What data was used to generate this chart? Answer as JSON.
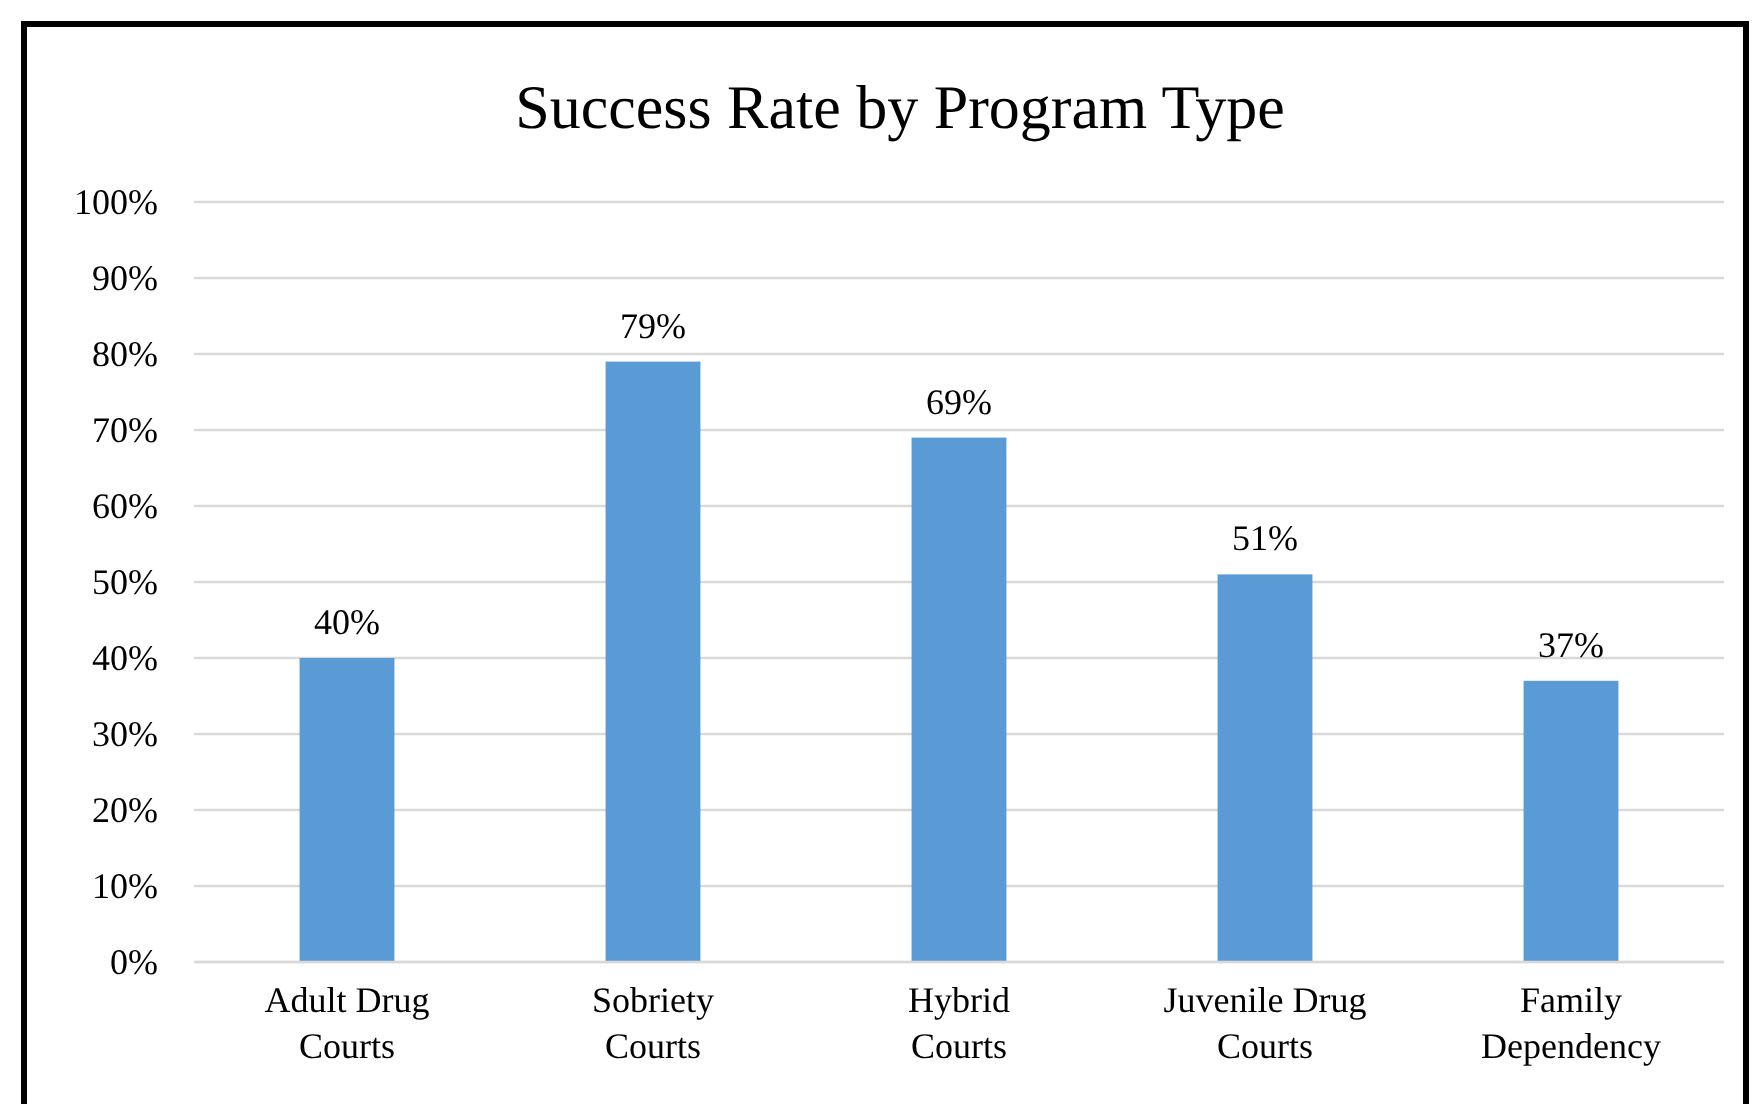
{
  "chart_data": {
    "type": "bar",
    "title": "Success Rate by Program Type",
    "categories": [
      "Adult Drug Courts",
      "Sobriety Courts",
      "Hybrid Courts",
      "Juvenile Drug Courts",
      "Family Dependency"
    ],
    "values": [
      40,
      79,
      69,
      51,
      37
    ],
    "color": "#5b9bd5",
    "value_labels": [
      "40%",
      "79%",
      "69%",
      "51%",
      "37%"
    ],
    "ylim": [
      0,
      100
    ],
    "yticks": [
      {
        "value": 0,
        "label": "0%"
      },
      {
        "value": 10,
        "label": "10%"
      },
      {
        "value": 20,
        "label": "20%"
      },
      {
        "value": 30,
        "label": "30%"
      },
      {
        "value": 40,
        "label": "40%"
      },
      {
        "value": 50,
        "label": "50%"
      },
      {
        "value": 60,
        "label": "60%"
      },
      {
        "value": 70,
        "label": "70%"
      },
      {
        "value": 80,
        "label": "80%"
      },
      {
        "value": 90,
        "label": "90%"
      },
      {
        "value": 100,
        "label": "100%"
      }
    ],
    "grid": "y"
  }
}
